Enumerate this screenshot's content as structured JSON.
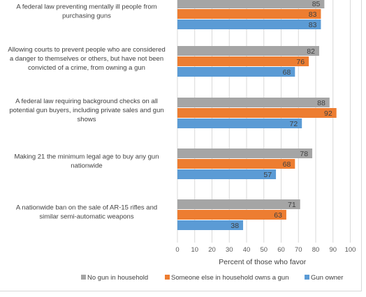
{
  "chart_data": {
    "type": "bar",
    "orientation": "horizontal",
    "categories": [
      [
        "A federal law preventing mentally ill people from",
        "purchasing guns"
      ],
      [
        "Allowing courts to prevent people who are considered",
        "a danger to themselves or others, but have not been",
        "convicted of a crime, from owning a gun"
      ],
      [
        "A federal law requiring background checks on all",
        "potential gun buyers, including private sales and gun",
        "shows"
      ],
      [
        "Making 21 the minimum legal age to buy any gun",
        "nationwide"
      ],
      [
        "A nationwide ban on the sale of AR-15 rifles and",
        "similar semi-automatic weapons"
      ]
    ],
    "series": [
      {
        "name": "No gun in household",
        "color": "#a5a5a5",
        "values": [
          85,
          82,
          88,
          78,
          71
        ]
      },
      {
        "name": "Someone else in household owns a gun",
        "color": "#ed7d31",
        "values": [
          83,
          76,
          92,
          68,
          63
        ]
      },
      {
        "name": "Gun owner",
        "color": "#5b9bd5",
        "values": [
          83,
          68,
          72,
          57,
          38
        ]
      }
    ],
    "xlabel": "Percent of those who favor",
    "xlim": [
      0,
      100
    ],
    "xticks": [
      0,
      10,
      20,
      30,
      40,
      50,
      60,
      70,
      80,
      90,
      100
    ],
    "grid": true,
    "legend_position": "bottom"
  }
}
